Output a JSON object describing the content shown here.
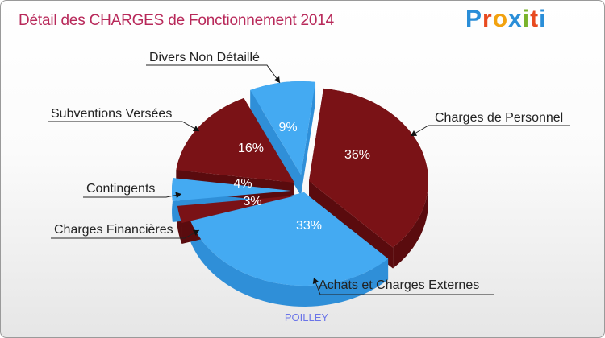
{
  "title": "Détail des CHARGES de Fonctionnement 2014",
  "logo": {
    "text": "Proxiti",
    "letters": [
      "P",
      "r",
      "o",
      "x",
      "i",
      "t",
      "i"
    ],
    "colors": [
      "#2a8ed8",
      "#e84a1f",
      "#f2a20f",
      "#2a8ed8",
      "#7ab32c",
      "#e84a1f",
      "#2a8ed8"
    ]
  },
  "chart_data": {
    "type": "pie",
    "title": "Détail des CHARGES de Fonctionnement 2014",
    "subtitle": "POILLEY",
    "series": [
      {
        "name": "Charges de Personnel",
        "value": 36,
        "label": "36%",
        "color": "#7a1216",
        "side": "#5a0b0e"
      },
      {
        "name": "Achats et Charges Externes",
        "value": 33,
        "label": "33%",
        "color": "#44aaf2",
        "side": "#2f8fd8"
      },
      {
        "name": "Charges Financières",
        "value": 3,
        "label": "3%",
        "color": "#7a1216",
        "side": "#5a0b0e"
      },
      {
        "name": "Contingents",
        "value": 4,
        "label": "4%",
        "color": "#44aaf2",
        "side": "#2f8fd8"
      },
      {
        "name": "Subventions Versées",
        "value": 16,
        "label": "16%",
        "color": "#7a1216",
        "side": "#5a0b0e"
      },
      {
        "name": "Divers Non Détaillé",
        "value": 9,
        "label": "9%",
        "color": "#44aaf2",
        "side": "#2f8fd8"
      }
    ]
  }
}
